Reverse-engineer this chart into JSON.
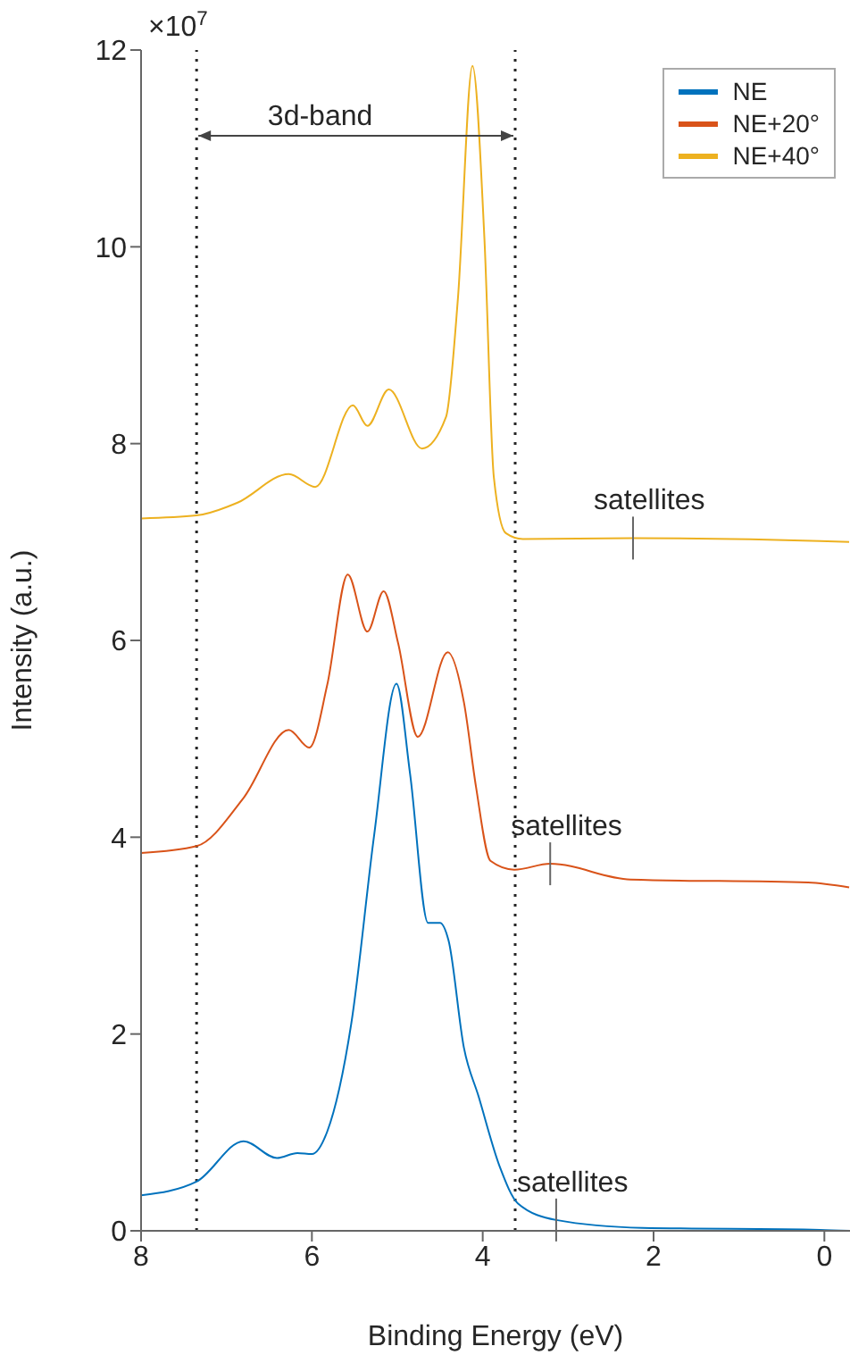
{
  "chart_data": {
    "type": "line",
    "xlabel": "Binding Energy (eV)",
    "ylabel": "Intensity (a.u.)",
    "xlim": [
      8,
      -0.3
    ],
    "xticks": [
      8,
      6,
      4,
      2,
      0
    ],
    "ylim": [
      0,
      12
    ],
    "yticks": [
      0,
      2,
      4,
      6,
      8,
      10,
      12
    ],
    "grid": false,
    "legend": "top right",
    "marker": "none",
    "line_style": "solid",
    "series": [
      {
        "name": "NE",
        "color": "#0072bd",
        "x": [
          8,
          7.35,
          6.8,
          6.41,
          6.17,
          6.0,
          5.82,
          5.54,
          5.27,
          5.01,
          4.85,
          4.64,
          4.5,
          4.4,
          4.22,
          4.05,
          3.8,
          3.59,
          3.14,
          2.13,
          0.05,
          -0.3
        ],
        "values": [
          0.36,
          0.5,
          0.91,
          0.74,
          0.79,
          0.78,
          1.01,
          2.1,
          4.03,
          5.56,
          4.64,
          3.13,
          3.13,
          2.95,
          1.86,
          1.37,
          0.65,
          0.28,
          0.11,
          0.03,
          0.01,
          0.0
        ]
      },
      {
        "name": "NE+20°",
        "color": "#d95319",
        "x": [
          8,
          7.35,
          6.8,
          6.27,
          6.03,
          5.82,
          5.58,
          5.35,
          5.16,
          4.99,
          4.76,
          4.41,
          4.22,
          4.08,
          3.91,
          3.63,
          3.21,
          2.27,
          0.19,
          -0.29
        ],
        "values": [
          3.84,
          3.91,
          4.4,
          5.09,
          4.91,
          5.55,
          6.67,
          6.09,
          6.5,
          5.97,
          5.02,
          5.88,
          5.37,
          4.52,
          3.76,
          3.67,
          3.73,
          3.57,
          3.54,
          3.49
        ]
      },
      {
        "name": "NE+40°",
        "color": "#edb120",
        "x": [
          8,
          7.35,
          6.87,
          6.27,
          5.96,
          5.52,
          5.35,
          5.1,
          4.71,
          4.43,
          4.29,
          4.12,
          3.98,
          3.87,
          3.73,
          3.53,
          2.24,
          0.05,
          -0.29
        ],
        "values": [
          7.24,
          7.27,
          7.4,
          7.69,
          7.56,
          8.39,
          8.18,
          8.55,
          7.95,
          8.27,
          9.48,
          11.84,
          10.08,
          7.66,
          7.09,
          7.03,
          7.04,
          7.01,
          7.0
        ]
      }
    ],
    "ref_lines": [
      {
        "axis": "x",
        "value": 7.35,
        "label": null,
        "color": "#262626",
        "line_style": "dotted"
      },
      {
        "axis": "x",
        "value": 3.62,
        "label": null,
        "color": "#262626",
        "line_style": "dotted"
      }
    ],
    "annotations": [
      "×10$^{7}$",
      "3d-band",
      {
        "text": "satellites",
        "x": 2.24,
        "y": 7.04
      },
      {
        "text": "satellites",
        "x": 3.21,
        "y": 3.73
      },
      {
        "text": "satellites",
        "x": 3.14,
        "y": 0.11
      }
    ]
  }
}
